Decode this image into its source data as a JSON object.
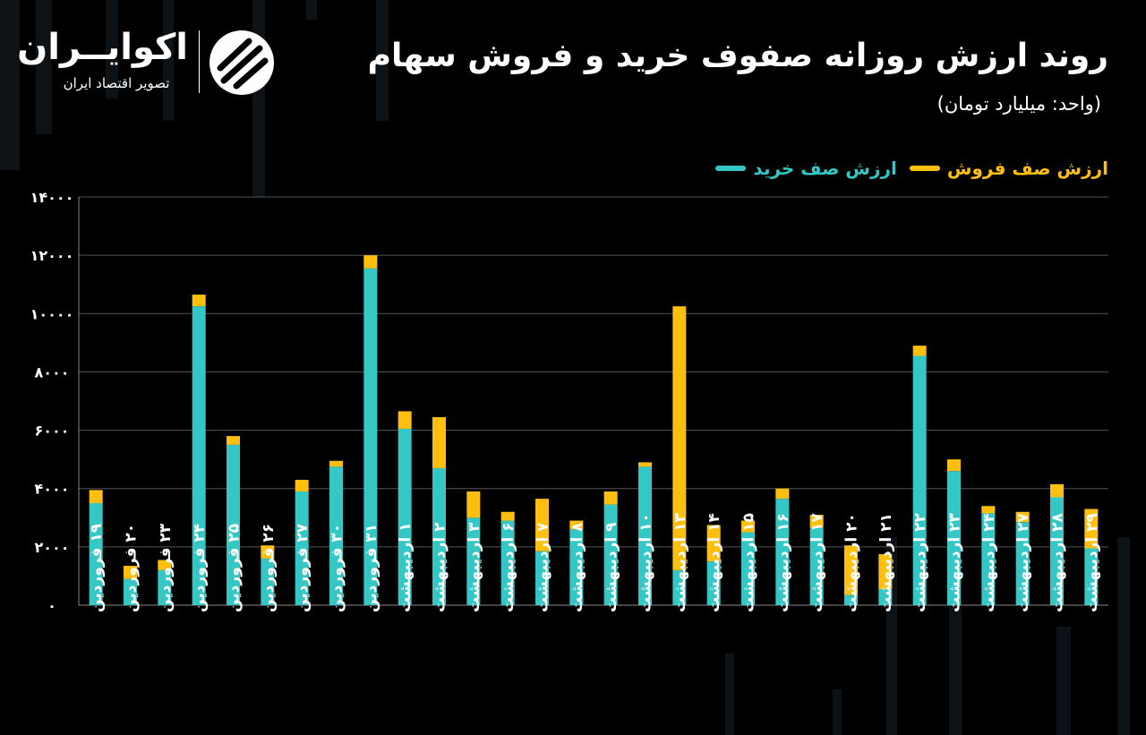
{
  "header": {
    "title": "روند ارزش روزانه صفوف خرید و فروش سهام",
    "subtitle": "(واحد: میلیارد تومان)"
  },
  "brand": {
    "name": "اکوایــران",
    "tagline": "تصویر اقتصاد ایران"
  },
  "colors": {
    "background": "#000000",
    "buy": "#35C6C6",
    "sell": "#FFBF0F",
    "grid": "#555555"
  },
  "chart_data": {
    "type": "bar",
    "stacked": true,
    "title": "روند ارزش روزانه صفوف خرید و فروش سهام",
    "ylabel": "",
    "xlabel": "",
    "ylim": [
      0,
      14000
    ],
    "yticks": [
      "۰",
      "۲۰۰۰",
      "۴۰۰۰",
      "۶۰۰۰",
      "۸۰۰۰",
      "۱۰۰۰۰",
      "۱۲۰۰۰",
      "۱۴۰۰۰"
    ],
    "ytick_values": [
      0,
      2000,
      4000,
      6000,
      8000,
      10000,
      12000,
      14000
    ],
    "grid": true,
    "legend_position": "top-right",
    "categories": [
      "۱۹ فروردین",
      "۲۰ فروردین",
      "۲۳ فروردین",
      "۲۴ فروردین",
      "۲۵ فروردین",
      "۲۶ فروردین",
      "۲۷ فروردین",
      "۳۰ فروردین",
      "۳۱ فروردین",
      "۱ اردیبهشت",
      "۲ اردیبهشت",
      "۳ اردیبهشت",
      "۶ اردیبهشت",
      "۷ اردیبهشت",
      "۸ اردیبهشت",
      "۹ اردیبهشت",
      "۱۰ اردیبهشت",
      "۱۳ اردیبهشت",
      "۱۴ اردیبهشت",
      "۱۵ اردیبهشت",
      "۱۶ اردیبهشت",
      "۱۷ اردیبهشت",
      "۲۰ اردیبهشت",
      "۲۱ اردیبهشت",
      "۲۲ اردیبهشت",
      "۲۳ اردیبهشت",
      "۲۴ اردیبهشت",
      "۲۷ اردیبهشت",
      "۲۸ اردیبهشت",
      "۲۹ اردیبهشت"
    ],
    "series": [
      {
        "name": "ارزش صف خرید",
        "values": [
          3500,
          900,
          1200,
          10250,
          5500,
          1600,
          3900,
          4750,
          11550,
          6050,
          4700,
          3000,
          2900,
          1850,
          2600,
          3450,
          4750,
          1200,
          1500,
          2500,
          3650,
          2650,
          350,
          550,
          8550,
          4600,
          3150,
          2850,
          3700,
          1950
        ]
      },
      {
        "name": "ارزش صف فروش",
        "values": [
          450,
          450,
          350,
          400,
          300,
          450,
          400,
          200,
          450,
          600,
          1750,
          900,
          300,
          1800,
          300,
          450,
          150,
          9050,
          1250,
          400,
          350,
          450,
          1700,
          1200,
          350,
          400,
          250,
          350,
          450,
          1350
        ]
      }
    ]
  }
}
